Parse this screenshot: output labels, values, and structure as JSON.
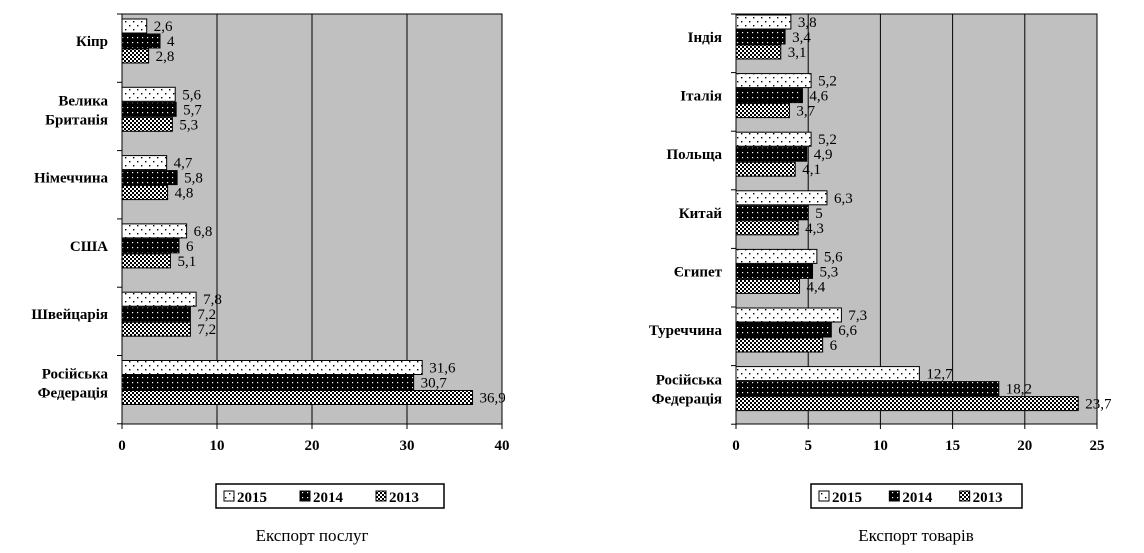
{
  "colors": {
    "plot_bg": "#c0c0c0",
    "series_2015": "#ffffff",
    "series_2014": "#000000",
    "series_2013": "#ffffff"
  },
  "chart_data": [
    {
      "type": "bar",
      "orientation": "horizontal",
      "caption": "Експорт послуг",
      "categories": [
        "Кіпр",
        "Велика Британія",
        "Німеччина",
        "США",
        "Швейцарія",
        "Російська Федерація"
      ],
      "category_lines": [
        [
          "Кіпр"
        ],
        [
          "Велика",
          "Британія"
        ],
        [
          "Німеччина"
        ],
        [
          "США"
        ],
        [
          "Швейцарія"
        ],
        [
          "Російська",
          "Федерація"
        ]
      ],
      "series": [
        {
          "name": "2015",
          "values": [
            2.6,
            5.6,
            4.7,
            6.8,
            7.8,
            31.6
          ],
          "labels": [
            "2,6",
            "5,6",
            "4,7",
            "6,8",
            "7,8",
            "31,6"
          ]
        },
        {
          "name": "2014",
          "values": [
            4,
            5.7,
            5.8,
            6,
            7.2,
            30.7
          ],
          "labels": [
            "4",
            "5,7",
            "5,8",
            "6",
            "7,2",
            "30,7"
          ]
        },
        {
          "name": "2013",
          "values": [
            2.8,
            5.3,
            4.8,
            5.1,
            7.2,
            36.9
          ],
          "labels": [
            "2,8",
            "5,3",
            "4,8",
            "5,1",
            "7,2",
            "36,9"
          ]
        }
      ],
      "xlim": [
        0,
        40
      ],
      "xticks": [
        "0",
        "10",
        "20",
        "30",
        "40"
      ],
      "legend": [
        "2015",
        "2014",
        "2013"
      ],
      "legend_position": "bottom",
      "grid": true
    },
    {
      "type": "bar",
      "orientation": "horizontal",
      "caption": "Експорт товарів",
      "categories": [
        "Індія",
        "Італія",
        "Польща",
        "Китай",
        "Єгипет",
        "Туреччина",
        "Російська Федерація"
      ],
      "category_lines": [
        [
          "Індія"
        ],
        [
          "Італія"
        ],
        [
          "Польща"
        ],
        [
          "Китай"
        ],
        [
          "Єгипет"
        ],
        [
          "Туреччина"
        ],
        [
          "Російська",
          "Федерація"
        ]
      ],
      "series": [
        {
          "name": "2015",
          "values": [
            3.8,
            5.2,
            5.2,
            6.3,
            5.6,
            7.3,
            12.7
          ],
          "labels": [
            "3,8",
            "5,2",
            "5,2",
            "6,3",
            "5,6",
            "7,3",
            "12,7"
          ]
        },
        {
          "name": "2014",
          "values": [
            3.4,
            4.6,
            4.9,
            5,
            5.3,
            6.6,
            18.2
          ],
          "labels": [
            "3,4",
            "4,6",
            "4,9",
            "5",
            "5,3",
            "6,6",
            "18,2"
          ]
        },
        {
          "name": "2013",
          "values": [
            3.1,
            3.7,
            4.1,
            4.3,
            4.4,
            6,
            23.7
          ],
          "labels": [
            "3,1",
            "3,7",
            "4,1",
            "4,3",
            "4,4",
            "6",
            "23,7"
          ]
        }
      ],
      "xlim": [
        0,
        25
      ],
      "xticks": [
        "0",
        "5",
        "10",
        "15",
        "20",
        "25"
      ],
      "legend": [
        "2015",
        "2014",
        "2013"
      ],
      "legend_position": "bottom",
      "grid": true
    }
  ]
}
